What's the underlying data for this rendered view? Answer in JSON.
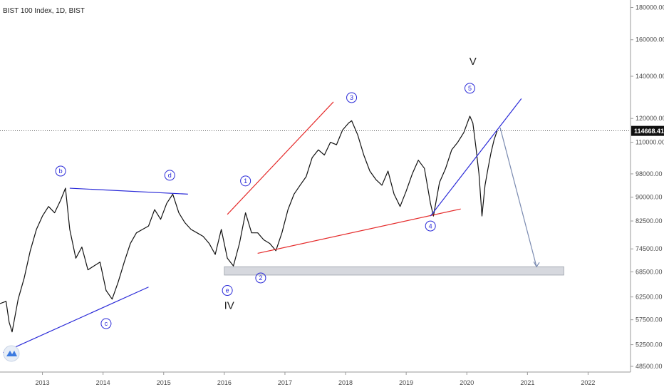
{
  "chart_data": {
    "type": "line",
    "title": "BIST 100 Index, 1D, BIST",
    "last_price": "114668.41",
    "yscale": "log",
    "ylim": [
      47500,
      185000
    ],
    "xlim": [
      2012.3,
      2022.7
    ],
    "y_ticks": [
      "180000.00",
      "160000.00",
      "140000.00",
      "120000.00",
      "110000.00",
      "98000.00",
      "90000.00",
      "82500.00",
      "74500.00",
      "68500.00",
      "62500.00",
      "57500.00",
      "52500.00",
      "48500.00"
    ],
    "y_tick_values": [
      180000,
      160000,
      140000,
      120000,
      110000,
      98000,
      90000,
      82500,
      74500,
      68500,
      62500,
      57500,
      52500,
      48500
    ],
    "x_ticks": [
      "2013",
      "2014",
      "2015",
      "2016",
      "2017",
      "2018",
      "2019",
      "2020",
      "2021",
      "2022"
    ],
    "x_tick_values": [
      2013,
      2014,
      2015,
      2016,
      2017,
      2018,
      2019,
      2020,
      2021,
      2022
    ],
    "series": [
      {
        "x": [
          2012.3,
          2012.4,
          2012.45,
          2012.5,
          2012.6,
          2012.7,
          2012.8,
          2012.9,
          2013.0,
          2013.1,
          2013.2,
          2013.3,
          2013.38,
          2013.45,
          2013.55,
          2013.65,
          2013.75,
          2013.85,
          2013.95,
          2014.05,
          2014.15,
          2014.25,
          2014.35,
          2014.45,
          2014.55,
          2014.65,
          2014.75,
          2014.85,
          2014.95,
          2015.05,
          2015.15,
          2015.25,
          2015.35,
          2015.45,
          2015.55,
          2015.65,
          2015.75,
          2015.85,
          2015.95,
          2016.05,
          2016.15,
          2016.25,
          2016.35,
          2016.45,
          2016.55,
          2016.65,
          2016.75,
          2016.85,
          2016.95,
          2017.05,
          2017.15,
          2017.25,
          2017.35,
          2017.45,
          2017.55,
          2017.65,
          2017.75,
          2017.85,
          2017.95,
          2018.05,
          2018.1,
          2018.2,
          2018.3,
          2018.4,
          2018.5,
          2018.6,
          2018.7,
          2018.8,
          2018.9,
          2019.0,
          2019.1,
          2019.2,
          2019.3,
          2019.4,
          2019.45,
          2019.55,
          2019.65,
          2019.75,
          2019.85,
          2019.95,
          2020.05,
          2020.1,
          2020.15,
          2020.2,
          2020.25,
          2020.3,
          2020.35,
          2020.4,
          2020.45,
          2020.5
        ],
        "y": [
          61000,
          61500,
          57000,
          55000,
          62000,
          67000,
          74000,
          80000,
          84000,
          87000,
          85000,
          89000,
          93000,
          80000,
          72000,
          75000,
          69000,
          70000,
          71000,
          64000,
          62000,
          66000,
          71000,
          76000,
          79000,
          80000,
          81000,
          86000,
          83000,
          88000,
          91000,
          85000,
          82000,
          80000,
          79000,
          78000,
          76000,
          73000,
          80000,
          72000,
          70000,
          76000,
          85000,
          79000,
          79000,
          77000,
          76000,
          74000,
          79000,
          86000,
          91000,
          94000,
          97000,
          104000,
          107000,
          105000,
          110000,
          109000,
          115000,
          118000,
          119000,
          113000,
          105000,
          99000,
          96000,
          94000,
          99000,
          91000,
          87000,
          92000,
          98000,
          103000,
          100000,
          88000,
          84000,
          95000,
          100000,
          107000,
          110000,
          114000,
          121000,
          118000,
          108000,
          98000,
          84000,
          94000,
          100000,
          106000,
          111000,
          114668
        ]
      }
    ],
    "annotations": {
      "waves": [
        {
          "text": "b",
          "x": 2013.3,
          "y": 99000
        },
        {
          "text": "c",
          "x": 2014.05,
          "y": 56700
        },
        {
          "text": "d",
          "x": 2015.1,
          "y": 97500
        },
        {
          "text": "e",
          "x": 2016.05,
          "y": 64000
        },
        {
          "text": "1",
          "x": 2016.35,
          "y": 95500
        },
        {
          "text": "2",
          "x": 2016.6,
          "y": 67000
        },
        {
          "text": "3",
          "x": 2018.1,
          "y": 129500
        },
        {
          "text": "4",
          "x": 2019.4,
          "y": 81000
        },
        {
          "text": "5",
          "x": 2020.05,
          "y": 134000
        }
      ],
      "labels": [
        {
          "text": "IV",
          "x": 2016.08,
          "y": 59800
        },
        {
          "text": "V",
          "x": 2020.1,
          "y": 146000
        }
      ]
    },
    "trendlines": [
      {
        "color": "#2a2ad8",
        "from": [
          2012.35,
          51000
        ],
        "to": [
          2014.75,
          64800
        ]
      },
      {
        "color": "#2a2ad8",
        "from": [
          2013.45,
          93000
        ],
        "to": [
          2015.4,
          91000
        ]
      },
      {
        "color": "#e52b2b",
        "from": [
          2016.05,
          84500
        ],
        "to": [
          2017.8,
          127500
        ]
      },
      {
        "color": "#e52b2b",
        "from": [
          2016.55,
          73300
        ],
        "to": [
          2019.9,
          86200
        ]
      },
      {
        "color": "#2a2ad8",
        "from": [
          2019.4,
          84000
        ],
        "to": [
          2020.9,
          129000
        ]
      },
      {
        "color": "#7a8ab0",
        "from": [
          2020.55,
          116000
        ],
        "to": [
          2021.15,
          69800
        ]
      }
    ],
    "zone": {
      "x0": 2016.0,
      "x1": 2021.6,
      "y0": 67700,
      "y1": 69800
    },
    "colors": {
      "price": "#111111",
      "wave": "#2a2ad8",
      "red": "#e52b2b",
      "zone": "#d6d8de",
      "last_bg": "#111111",
      "axis_text": "#4a4a4a"
    }
  }
}
